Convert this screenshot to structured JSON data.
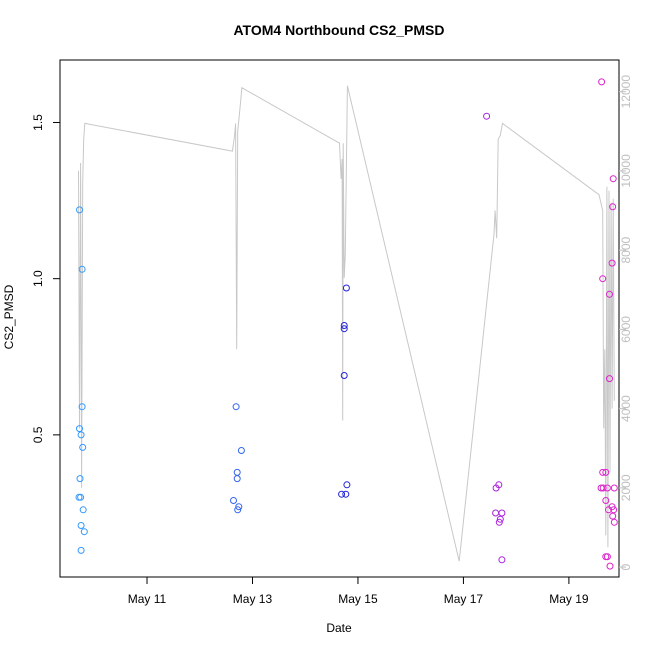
{
  "chart_data": {
    "type": "scatter",
    "title": "ATOM4 Northbound CS2_PMSD",
    "xlabel": "Date",
    "ylabel": "CS2_PMSD",
    "xlim": [
      9.35,
      19.95
    ],
    "ylim": [
      0.045,
      1.7
    ],
    "x_ticks": [
      {
        "value": 11,
        "label": "May 11"
      },
      {
        "value": 13,
        "label": "May 13"
      },
      {
        "value": 15,
        "label": "May 15"
      },
      {
        "value": 17,
        "label": "May 17"
      },
      {
        "value": 19,
        "label": "May 19"
      }
    ],
    "y_ticks": [
      {
        "value": 0.5,
        "label": "0.5"
      },
      {
        "value": 1.0,
        "label": "1.0"
      },
      {
        "value": 1.5,
        "label": "1.5"
      }
    ],
    "y2lim": [
      -250,
      12800
    ],
    "y2_ticks": [
      {
        "value": 0,
        "label": "0"
      },
      {
        "value": 2000,
        "label": "2000"
      },
      {
        "value": 4000,
        "label": "4000"
      },
      {
        "value": 6000,
        "label": "6000"
      },
      {
        "value": 8000,
        "label": "8000"
      },
      {
        "value": 10000,
        "label": "10000"
      },
      {
        "value": 12000,
        "label": "12000"
      }
    ],
    "grid": false,
    "legend": "none",
    "points": [
      {
        "x": 9.72,
        "y": 1.22,
        "color": "#3399ff"
      },
      {
        "x": 9.77,
        "y": 1.03,
        "color": "#3399ff"
      },
      {
        "x": 9.77,
        "y": 0.59,
        "color": "#3399ff"
      },
      {
        "x": 9.72,
        "y": 0.52,
        "color": "#3399ff"
      },
      {
        "x": 9.75,
        "y": 0.5,
        "color": "#3399ff"
      },
      {
        "x": 9.78,
        "y": 0.46,
        "color": "#3399ff"
      },
      {
        "x": 9.73,
        "y": 0.36,
        "color": "#3399ff"
      },
      {
        "x": 9.71,
        "y": 0.3,
        "color": "#3399ff"
      },
      {
        "x": 9.74,
        "y": 0.3,
        "color": "#3399ff"
      },
      {
        "x": 9.79,
        "y": 0.26,
        "color": "#3399ff"
      },
      {
        "x": 9.75,
        "y": 0.21,
        "color": "#3399ff"
      },
      {
        "x": 9.81,
        "y": 0.19,
        "color": "#3399ff"
      },
      {
        "x": 9.75,
        "y": 0.13,
        "color": "#3399ff"
      },
      {
        "x": 12.69,
        "y": 0.59,
        "color": "#3366ee"
      },
      {
        "x": 12.79,
        "y": 0.45,
        "color": "#3366ee"
      },
      {
        "x": 12.71,
        "y": 0.38,
        "color": "#3366ee"
      },
      {
        "x": 12.71,
        "y": 0.36,
        "color": "#3366ee"
      },
      {
        "x": 12.64,
        "y": 0.29,
        "color": "#3366ee"
      },
      {
        "x": 12.74,
        "y": 0.27,
        "color": "#3366ee"
      },
      {
        "x": 12.72,
        "y": 0.26,
        "color": "#3366ee"
      },
      {
        "x": 14.78,
        "y": 0.97,
        "color": "#2222dd"
      },
      {
        "x": 14.74,
        "y": 0.85,
        "color": "#2222dd"
      },
      {
        "x": 14.74,
        "y": 0.84,
        "color": "#2222dd"
      },
      {
        "x": 14.74,
        "y": 0.69,
        "color": "#2222dd"
      },
      {
        "x": 14.79,
        "y": 0.34,
        "color": "#2222dd"
      },
      {
        "x": 14.69,
        "y": 0.31,
        "color": "#2222dd"
      },
      {
        "x": 14.77,
        "y": 0.31,
        "color": "#2222dd"
      },
      {
        "x": 17.44,
        "y": 1.52,
        "color": "#aa22dd"
      },
      {
        "x": 17.67,
        "y": 0.34,
        "color": "#aa22dd"
      },
      {
        "x": 17.62,
        "y": 0.33,
        "color": "#aa22dd"
      },
      {
        "x": 17.61,
        "y": 0.25,
        "color": "#aa22dd"
      },
      {
        "x": 17.73,
        "y": 0.25,
        "color": "#aa22dd"
      },
      {
        "x": 17.7,
        "y": 0.23,
        "color": "#aa22dd"
      },
      {
        "x": 17.68,
        "y": 0.22,
        "color": "#aa22dd"
      },
      {
        "x": 17.73,
        "y": 0.1,
        "color": "#aa22dd"
      },
      {
        "x": 19.62,
        "y": 1.63,
        "color": "#dd22cc"
      },
      {
        "x": 19.84,
        "y": 1.32,
        "color": "#dd22cc"
      },
      {
        "x": 19.83,
        "y": 1.23,
        "color": "#dd22cc"
      },
      {
        "x": 19.82,
        "y": 1.05,
        "color": "#dd22cc"
      },
      {
        "x": 19.64,
        "y": 1.0,
        "color": "#dd22cc"
      },
      {
        "x": 19.77,
        "y": 0.95,
        "color": "#dd22cc"
      },
      {
        "x": 19.77,
        "y": 0.68,
        "color": "#dd22cc"
      },
      {
        "x": 19.64,
        "y": 0.38,
        "color": "#dd22cc"
      },
      {
        "x": 19.7,
        "y": 0.38,
        "color": "#dd22cc"
      },
      {
        "x": 19.61,
        "y": 0.33,
        "color": "#dd22cc"
      },
      {
        "x": 19.65,
        "y": 0.33,
        "color": "#dd22cc"
      },
      {
        "x": 19.73,
        "y": 0.33,
        "color": "#dd22cc"
      },
      {
        "x": 19.86,
        "y": 0.33,
        "color": "#dd22cc"
      },
      {
        "x": 19.7,
        "y": 0.29,
        "color": "#dd22cc"
      },
      {
        "x": 19.82,
        "y": 0.27,
        "color": "#dd22cc"
      },
      {
        "x": 19.75,
        "y": 0.26,
        "color": "#dd22cc"
      },
      {
        "x": 19.85,
        "y": 0.26,
        "color": "#dd22cc"
      },
      {
        "x": 19.83,
        "y": 0.24,
        "color": "#dd22cc"
      },
      {
        "x": 19.86,
        "y": 0.22,
        "color": "#dd22cc"
      },
      {
        "x": 19.7,
        "y": 0.11,
        "color": "#dd22cc"
      },
      {
        "x": 19.73,
        "y": 0.11,
        "color": "#dd22cc"
      },
      {
        "x": 19.78,
        "y": 0.08,
        "color": "#dd22cc"
      }
    ],
    "line_series": {
      "axis": "right",
      "color": "#c8c8c8",
      "points": [
        [
          9.7,
          10000
        ],
        [
          9.72,
          3500
        ],
        [
          9.74,
          10200
        ],
        [
          9.76,
          2000
        ],
        [
          9.78,
          9700
        ],
        [
          9.8,
          10800
        ],
        [
          9.82,
          11200
        ],
        [
          12.62,
          10500
        ],
        [
          12.66,
          10900
        ],
        [
          12.68,
          11200
        ],
        [
          12.7,
          5500
        ],
        [
          12.72,
          11000
        ],
        [
          12.75,
          11400
        ],
        [
          12.8,
          12100
        ],
        [
          14.65,
          10700
        ],
        [
          14.68,
          9800
        ],
        [
          14.7,
          10300
        ],
        [
          14.71,
          3700
        ],
        [
          14.72,
          10700
        ],
        [
          14.74,
          7300
        ],
        [
          14.76,
          7900
        ],
        [
          14.8,
          12150
        ],
        [
          16.92,
          150
        ],
        [
          17.58,
          8400
        ],
        [
          17.6,
          9000
        ],
        [
          17.63,
          8300
        ],
        [
          17.66,
          10800
        ],
        [
          17.7,
          10900
        ],
        [
          17.74,
          11200
        ],
        [
          19.57,
          9400
        ],
        [
          19.64,
          9000
        ],
        [
          19.66,
          3500
        ],
        [
          19.68,
          5500
        ],
        [
          19.7,
          800
        ],
        [
          19.72,
          9600
        ],
        [
          19.74,
          500
        ],
        [
          19.76,
          9500
        ],
        [
          19.78,
          2400
        ],
        [
          19.8,
          9200
        ],
        [
          19.82,
          4000
        ],
        [
          19.84,
          9300
        ],
        [
          19.86,
          4200
        ]
      ]
    }
  }
}
